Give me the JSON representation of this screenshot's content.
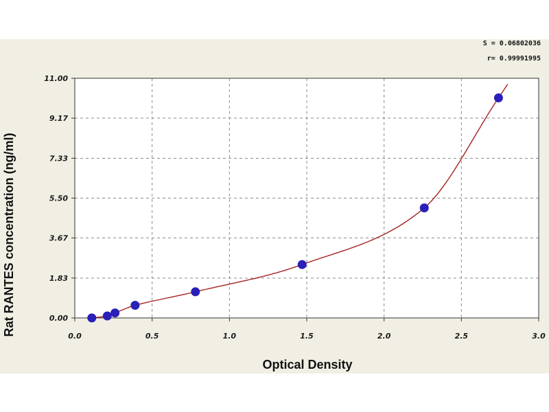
{
  "chart_data": {
    "type": "scatter",
    "title": "",
    "xlabel": "Optical Density",
    "ylabel": "Rat RANTES concentration (ng/ml)",
    "xlim": [
      0.0,
      3.0
    ],
    "ylim": [
      0.0,
      11.0
    ],
    "x_ticks": [
      "0.0",
      "0.5",
      "1.0",
      "1.5",
      "2.0",
      "2.5",
      "3.0"
    ],
    "y_ticks": [
      "0.00",
      "1.83",
      "3.67",
      "5.50",
      "7.33",
      "9.17",
      "11.00"
    ],
    "grid": true,
    "annotations": [
      "S = 0.06802036",
      "r= 0.99991995"
    ],
    "series": [
      {
        "points": [
          {
            "x": 0.11,
            "y": 0.0
          },
          {
            "x": 0.21,
            "y": 0.09
          },
          {
            "x": 0.26,
            "y": 0.23
          },
          {
            "x": 0.39,
            "y": 0.58
          },
          {
            "x": 0.78,
            "y": 1.2
          },
          {
            "x": 1.47,
            "y": 2.45
          },
          {
            "x": 2.26,
            "y": 5.05
          },
          {
            "x": 2.74,
            "y": 10.1
          }
        ],
        "marker_color": "#2a1fb8",
        "fit_color": "#a4221f"
      }
    ]
  }
}
